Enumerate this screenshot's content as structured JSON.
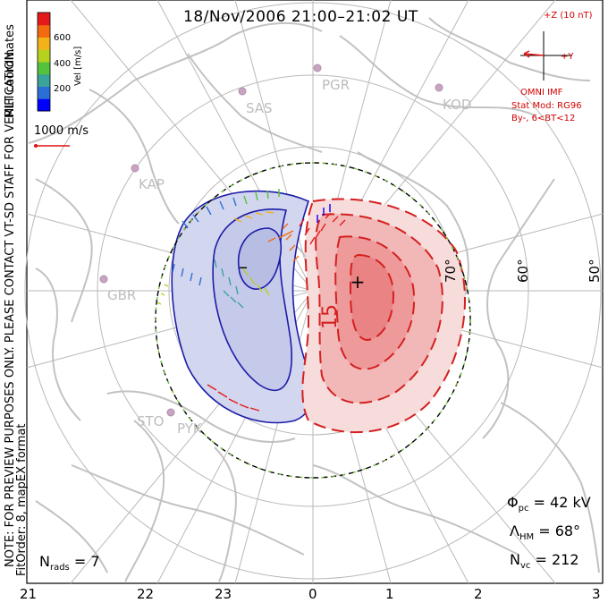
{
  "title": "18/Nov/2006 21:00–21:02 UT",
  "side_notes": {
    "coordinates": "MLT coordinates",
    "note": "NOTE: FOR PREVIEW PURPOSES ONLY. PLEASE CONTACT VT-SD STAFF FOR VERIFICATION.",
    "fit": "FitOrder: 8, mapEX format"
  },
  "colorbar": {
    "label": "Vel [m/s]",
    "ticks": [
      "600",
      "400",
      "200"
    ],
    "colors": [
      "#0000ff",
      "#2b6fd6",
      "#3aa39a",
      "#55c23c",
      "#b5d21e",
      "#f2b318",
      "#f46a10",
      "#e41a1a"
    ]
  },
  "reference_vector": {
    "label": "1000 m/s",
    "color": "#e01010"
  },
  "imf": {
    "top_label": "+Z (10 nT)",
    "right_label": "+Y",
    "source": "OMNI IMF",
    "model": "Stat Mod: RG96",
    "condition": "By-, 6<BT<12",
    "color": "#d40000"
  },
  "stations": [
    "PGR",
    "SAS",
    "KOD",
    "KAP",
    "GBR",
    "STO",
    "PYK"
  ],
  "latitude_labels": [
    "70°",
    "60°",
    "50°"
  ],
  "contour_label": "15",
  "potential": {
    "max_symbol": "+",
    "min_symbol": "–",
    "dusk_color": "#c9cdea",
    "dawn_color": "#f08a8a"
  },
  "stats": {
    "phi_pc": {
      "symbol": "Φ",
      "sub": "pc",
      "value": "= 42 kV"
    },
    "lambda_hm": {
      "symbol": "Λ",
      "sub": "HM",
      "value": "= 68°"
    },
    "n_vc": {
      "symbol": "N",
      "sub": "vc",
      "value": "= 212"
    },
    "n_rads": {
      "symbol": "N",
      "sub": "rads",
      "value": "= 7"
    }
  },
  "mlt_axis": [
    "21",
    "22",
    "23",
    "0",
    "1",
    "2",
    "3"
  ]
}
